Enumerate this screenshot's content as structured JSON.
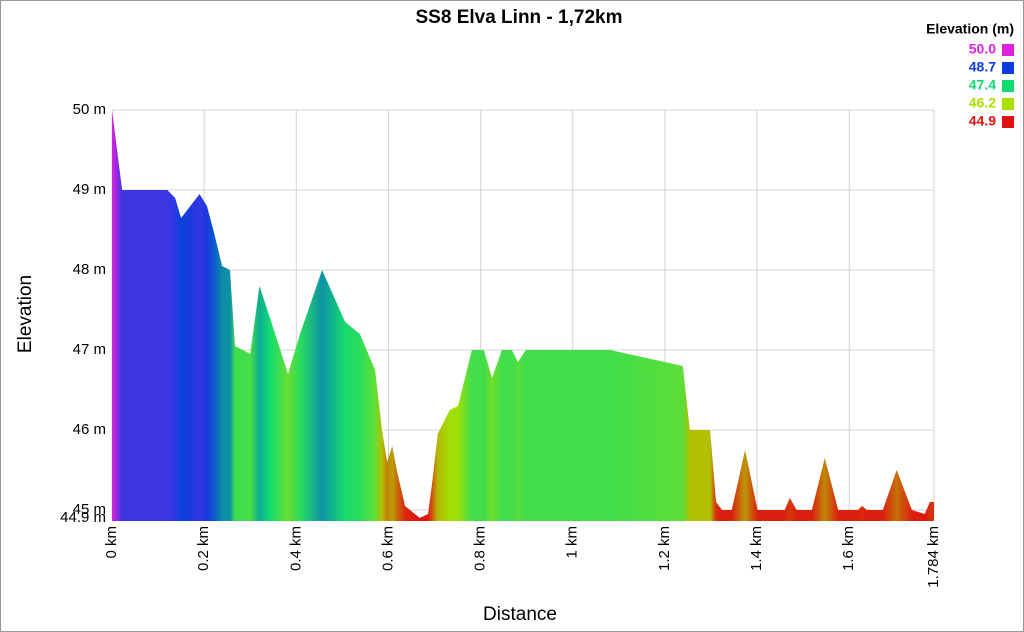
{
  "chart_data": {
    "type": "area",
    "title": "SS8 Elva Linn - 1,72km",
    "x_label": "Distance",
    "y_label": "Elevation",
    "x": [
      0,
      0.011,
      0.022,
      0.12,
      0.137,
      0.15,
      0.17,
      0.19,
      0.206,
      0.22,
      0.239,
      0.256,
      0.267,
      0.3,
      0.32,
      0.343,
      0.382,
      0.408,
      0.456,
      0.506,
      0.538,
      0.571,
      0.586,
      0.597,
      0.608,
      0.618,
      0.636,
      0.668,
      0.686,
      0.694,
      0.707,
      0.733,
      0.751,
      0.781,
      0.807,
      0.825,
      0.846,
      0.868,
      0.881,
      0.898,
      1.081,
      1.239,
      1.254,
      1.298,
      1.311,
      1.324,
      1.345,
      1.374,
      1.401,
      1.46,
      1.471,
      1.486,
      1.519,
      1.547,
      1.576,
      1.619,
      1.628,
      1.638,
      1.673,
      1.703,
      1.736,
      1.764,
      1.775,
      1.784
    ],
    "series": [
      {
        "values": [
          50.0,
          49.5,
          49.0,
          49.0,
          48.9,
          48.65,
          48.8,
          48.95,
          48.8,
          48.5,
          48.05,
          48.0,
          47.05,
          46.95,
          47.8,
          47.4,
          46.7,
          47.2,
          48.0,
          47.35,
          47.2,
          46.75,
          46.0,
          45.6,
          45.8,
          45.5,
          45.05,
          44.9,
          44.95,
          45.3,
          45.95,
          46.25,
          46.3,
          47.0,
          47.0,
          46.65,
          47.0,
          47.0,
          46.85,
          47.0,
          47.0,
          46.8,
          46.0,
          46.0,
          45.1,
          45.0,
          45.0,
          45.75,
          45.0,
          45.0,
          45.15,
          45.0,
          45.0,
          45.65,
          45.0,
          45.0,
          45.05,
          45.0,
          45.0,
          45.5,
          45.0,
          44.95,
          45.1,
          45.1
        ]
      }
    ],
    "xlim": [
      0,
      1.784
    ],
    "ylim": [
      44.9,
      50
    ],
    "xticks": [
      {
        "value": 0,
        "label": "0 km"
      },
      {
        "value": 0.2,
        "label": "0.2 km"
      },
      {
        "value": 0.4,
        "label": "0.4 km"
      },
      {
        "value": 0.6,
        "label": "0.6 km"
      },
      {
        "value": 0.8,
        "label": "0.8 km"
      },
      {
        "value": 1,
        "label": "1 km"
      },
      {
        "value": 1.2,
        "label": "1.2 km"
      },
      {
        "value": 1.4,
        "label": "1.4 km"
      },
      {
        "value": 1.6,
        "label": "1.6 km"
      },
      {
        "value": 1.784,
        "label": "1.784 km"
      }
    ],
    "yticks": [
      {
        "value": 44.9,
        "label": "44.9 m"
      },
      {
        "value": 45,
        "label": "45 m"
      },
      {
        "value": 46,
        "label": "46 m"
      },
      {
        "value": 47,
        "label": "47 m"
      },
      {
        "value": 48,
        "label": "48 m"
      },
      {
        "value": 49,
        "label": "49 m"
      },
      {
        "value": 50,
        "label": "50 m"
      }
    ],
    "grid": true,
    "legend": {
      "title": "Elevation (m)",
      "position": "top-right",
      "entries": [
        {
          "value": 50.0,
          "label": "50.0",
          "color": "#e020e0"
        },
        {
          "value": 48.7,
          "label": "48.7",
          "color": "#0a3ce0"
        },
        {
          "value": 47.4,
          "label": "47.4",
          "color": "#10dc70"
        },
        {
          "value": 46.2,
          "label": "46.2",
          "color": "#a8e000"
        },
        {
          "value": 44.9,
          "label": "44.9",
          "color": "#e01010"
        }
      ]
    }
  }
}
